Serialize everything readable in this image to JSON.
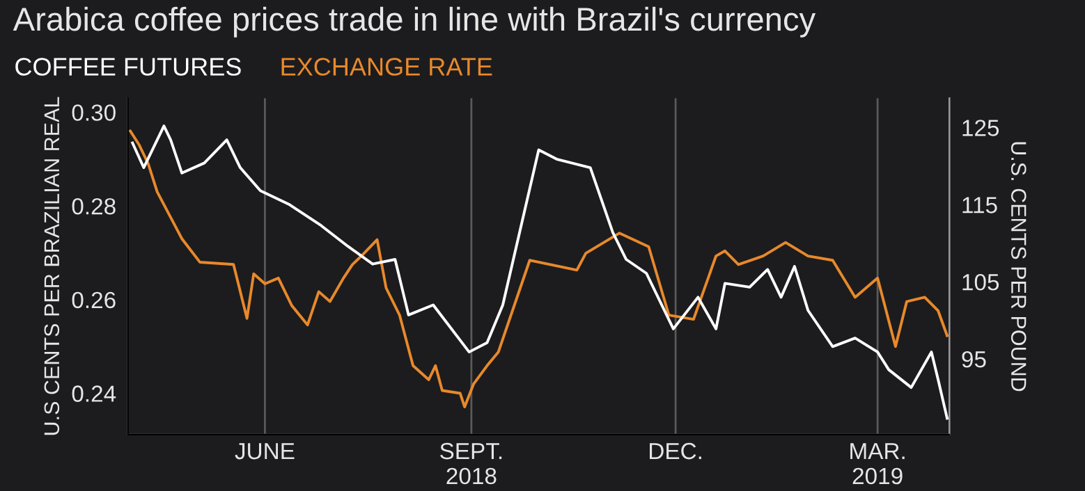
{
  "chart_data": {
    "type": "line",
    "title": "Arabica coffee prices trade in line with Brazil's currency",
    "ylabel": "U.S CENTS PER BRAZILIAN REAL",
    "y2label": "U.S. CENTS PER POUND",
    "legend": "top left",
    "grid": "x",
    "line_style": "solid",
    "xlim": [
      "2018-04-01",
      "2019-04-02"
    ],
    "xticks": [
      {
        "value": "2018-06-01",
        "label": "JUNE"
      },
      {
        "value": "2018-09-01",
        "label": "SEPT.\n2018"
      },
      {
        "value": "2018-12-01",
        "label": "DEC."
      },
      {
        "value": "2019-03-01",
        "label": "MAR.\n2019"
      }
    ],
    "ylim": [
      0.2312,
      0.303
    ],
    "yticks": [
      {
        "value": 0.24,
        "label": "0.24"
      },
      {
        "value": 0.26,
        "label": "0.26"
      },
      {
        "value": 0.28,
        "label": "0.28"
      },
      {
        "value": 0.3,
        "label": "0.30"
      }
    ],
    "y2lim": [
      85.2,
      128.8
    ],
    "y2ticks": [
      95,
      105,
      115,
      125
    ],
    "series": [
      {
        "name": "COFFEE FUTURES",
        "color": "#ffffff",
        "axis": "y2",
        "x": [
          "2018-04-03",
          "2018-04-08",
          "2018-04-17",
          "2018-04-20",
          "2018-04-25",
          "2018-05-05",
          "2018-05-15",
          "2018-05-21",
          "2018-05-30",
          "2018-06-12",
          "2018-06-26",
          "2018-07-08",
          "2018-07-19",
          "2018-07-29",
          "2018-08-04",
          "2018-08-15",
          "2018-08-31",
          "2018-09-08",
          "2018-09-15",
          "2018-10-01",
          "2018-10-09",
          "2018-10-24",
          "2018-11-03",
          "2018-11-09",
          "2018-11-18",
          "2018-11-30",
          "2018-12-11",
          "2018-12-19",
          "2018-12-23",
          "2019-01-03",
          "2019-01-11",
          "2019-01-17",
          "2019-01-23",
          "2019-01-29",
          "2019-02-09",
          "2019-02-19",
          "2019-03-01",
          "2019-03-06",
          "2019-03-16",
          "2019-03-25",
          "2019-03-28",
          "2019-04-01"
        ],
        "values": [
          123.0,
          119.8,
          125.2,
          123.4,
          119.1,
          120.4,
          123.4,
          119.8,
          116.8,
          115.0,
          112.3,
          109.6,
          107.3,
          107.9,
          100.7,
          102.0,
          95.9,
          97.1,
          102.0,
          122.1,
          120.9,
          119.8,
          111.4,
          107.9,
          106.1,
          98.9,
          103.0,
          98.9,
          104.8,
          104.3,
          106.6,
          103.0,
          107.0,
          101.3,
          96.6,
          97.7,
          95.9,
          93.6,
          91.3,
          95.9,
          92.3,
          87.3
        ]
      },
      {
        "name": "EXCHANGE RATE",
        "color": "#e8892b",
        "axis": "y",
        "x": [
          "2018-04-02",
          "2018-04-06",
          "2018-04-10",
          "2018-04-14",
          "2018-04-25",
          "2018-05-03",
          "2018-05-18",
          "2018-05-24",
          "2018-05-27",
          "2018-06-01",
          "2018-06-07",
          "2018-06-13",
          "2018-06-20",
          "2018-06-25",
          "2018-06-30",
          "2018-07-06",
          "2018-07-10",
          "2018-07-14",
          "2018-07-21",
          "2018-07-25",
          "2018-07-31",
          "2018-08-06",
          "2018-08-13",
          "2018-08-16",
          "2018-08-19",
          "2018-08-27",
          "2018-08-29",
          "2018-09-02",
          "2018-09-08",
          "2018-09-13",
          "2018-09-27",
          "2018-10-18",
          "2018-10-22",
          "2018-11-06",
          "2018-11-19",
          "2018-11-28",
          "2018-12-09",
          "2018-12-19",
          "2018-12-23",
          "2018-12-29",
          "2019-01-09",
          "2019-01-19",
          "2019-01-29",
          "2019-02-09",
          "2019-02-19",
          "2019-03-01",
          "2019-03-09",
          "2019-03-14",
          "2019-03-22",
          "2019-03-28",
          "2019-04-01"
        ],
        "values": [
          0.296,
          0.293,
          0.289,
          0.283,
          0.273,
          0.268,
          0.2675,
          0.256,
          0.2655,
          0.2634,
          0.2646,
          0.2587,
          0.2546,
          0.2617,
          0.2596,
          0.2646,
          0.2675,
          0.2693,
          0.2728,
          0.2625,
          0.2567,
          0.2459,
          0.2429,
          0.2459,
          0.2406,
          0.24,
          0.2371,
          0.242,
          0.2459,
          0.2488,
          0.2684,
          0.2663,
          0.2699,
          0.2742,
          0.2713,
          0.2567,
          0.2558,
          0.2693,
          0.2704,
          0.2675,
          0.2693,
          0.2722,
          0.2693,
          0.2684,
          0.2605,
          0.2646,
          0.25,
          0.2596,
          0.2605,
          0.2576,
          0.2523
        ]
      }
    ]
  }
}
